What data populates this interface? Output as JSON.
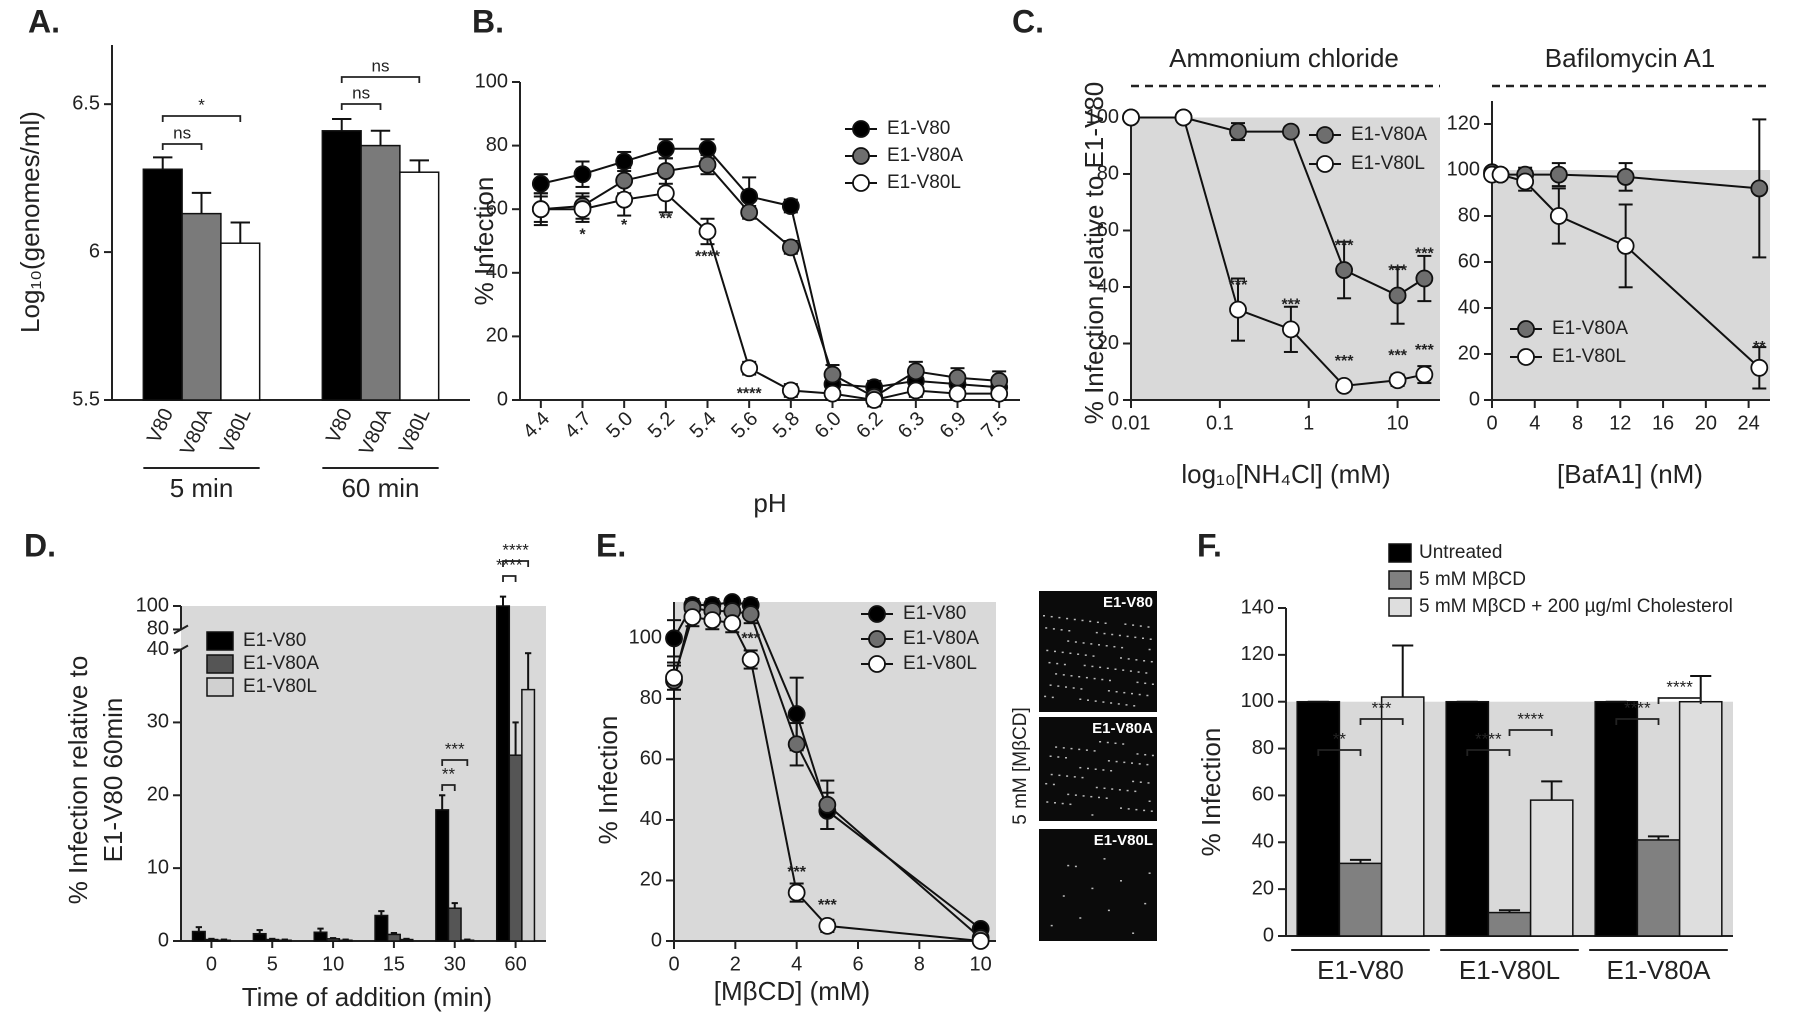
{
  "chart_data": [
    {
      "panel": "A.",
      "type": "bar",
      "ylabel": "Log₁₀(genomes/ml)",
      "categories": [
        "5 min",
        "60 min"
      ],
      "series": [
        {
          "name": "V80",
          "color": "#000000",
          "values": [
            6.28,
            6.41
          ],
          "errors": [
            0.04,
            0.04
          ]
        },
        {
          "name": "V80A",
          "color": "#7a7a7a",
          "values": [
            6.13,
            6.36
          ],
          "errors": [
            0.07,
            0.05
          ]
        },
        {
          "name": "V80L",
          "color": "#ffffff",
          "values": [
            6.03,
            6.27
          ],
          "errors": [
            0.07,
            0.04
          ]
        }
      ],
      "ylim": [
        5.5,
        6.7
      ],
      "yticks": [
        5.5,
        6,
        6.5
      ],
      "brackets": [
        "*",
        "ns",
        "ns",
        "ns"
      ]
    },
    {
      "panel": "B.",
      "type": "line",
      "xlabel": "pH",
      "ylabel": "% Infection",
      "categories": [
        "4.4",
        "4.7",
        "5.0",
        "5.2",
        "5.4",
        "5.6",
        "5.8",
        "6.0",
        "6.2",
        "6.3",
        "6.9",
        "7.5"
      ],
      "series": [
        {
          "name": "E1-V80",
          "color": "#000000",
          "values": [
            68,
            71,
            75,
            79,
            79,
            64,
            61,
            5,
            4,
            6,
            5,
            4
          ],
          "errors": [
            3,
            4,
            3,
            3,
            3,
            6,
            2,
            3,
            2,
            3,
            3,
            3
          ]
        },
        {
          "name": "E1-V80A",
          "color": "#6e6e6e",
          "values": [
            60,
            61,
            69,
            72,
            74,
            59,
            48,
            8,
            1,
            9,
            7,
            6
          ],
          "errors": [
            4,
            4,
            4,
            4,
            3,
            2,
            2,
            3,
            2,
            3,
            3,
            3
          ]
        },
        {
          "name": "E1-V80L",
          "color": "#ffffff",
          "values": [
            60,
            60,
            63,
            65,
            53,
            10,
            3,
            2,
            0,
            3,
            2,
            2
          ],
          "errors": [
            5,
            4,
            5,
            6,
            4,
            2,
            2,
            2,
            2,
            2,
            2,
            2
          ],
          "significance": [
            null,
            "*",
            "*",
            "**",
            "****",
            "****",
            null,
            null,
            null,
            null,
            null,
            null
          ]
        }
      ],
      "ylim": [
        0,
        100
      ],
      "yticks": [
        0,
        20,
        40,
        60,
        80,
        100
      ],
      "legend": "upper right"
    },
    {
      "panel": "C.",
      "type": "line",
      "title": "Ammonium chloride",
      "xlabel": "log₁₀[NH₄Cl] (mM)",
      "ylabel": "% Infection relative to E1-V80",
      "x": [
        0.01,
        0.039,
        0.16,
        0.63,
        2.5,
        10,
        20
      ],
      "xlog": true,
      "xlim": [
        0.01,
        30
      ],
      "xticks": [
        0.01,
        0.1,
        1,
        10
      ],
      "ylim": [
        0,
        103
      ],
      "yticks": [
        0,
        20,
        40,
        60,
        80,
        100
      ],
      "shade": "#d9d9d9",
      "shade_to": 100,
      "series": [
        {
          "name": "E1-V80A",
          "color": "#6e6e6e",
          "values": [
            100,
            100,
            95,
            95,
            46,
            37,
            43
          ],
          "errors": [
            0,
            0,
            3,
            0,
            10,
            10,
            8
          ],
          "significance": [
            null,
            null,
            null,
            null,
            "***",
            "***",
            "***"
          ]
        },
        {
          "name": "E1-V80L",
          "color": "#ffffff",
          "values": [
            100,
            100,
            32,
            25,
            5,
            7,
            9
          ],
          "errors": [
            0,
            0,
            11,
            8,
            1,
            2,
            3
          ],
          "significance": [
            null,
            null,
            "***",
            "***",
            "***",
            "***",
            "***"
          ]
        }
      ],
      "legend": "upper right"
    },
    {
      "type": "line",
      "title": "Bafilomycin A1",
      "xlabel": "[BafA1] (nM)",
      "x": [
        0,
        0.8,
        3.1,
        6.25,
        12.5,
        25
      ],
      "xlim": [
        0,
        26
      ],
      "xticks": [
        0,
        4,
        8,
        12,
        16,
        20,
        24
      ],
      "ylim": [
        0,
        130
      ],
      "yticks": [
        0,
        20,
        40,
        60,
        80,
        100,
        120
      ],
      "shade": "#d9d9d9",
      "shade_to": 100,
      "series": [
        {
          "name": "E1-V80A",
          "color": "#6e6e6e",
          "values": [
            99,
            98,
            98,
            98,
            97,
            92
          ],
          "errors": [
            2,
            2,
            3,
            5,
            6,
            30
          ]
        },
        {
          "name": "E1-V80L",
          "color": "#ffffff",
          "values": [
            98,
            98,
            95,
            80,
            67,
            14
          ],
          "errors": [
            2,
            2,
            4,
            12,
            18,
            9
          ],
          "significance": [
            null,
            null,
            null,
            null,
            null,
            "**"
          ]
        }
      ],
      "legend": "lower left"
    },
    {
      "panel": "D.",
      "type": "bar",
      "xlabel": "Time of addition (min)",
      "ylabel": [
        "% Infection relative to",
        "E1-V80 60min"
      ],
      "categories": [
        "0",
        "5",
        "10",
        "15",
        "30",
        "60"
      ],
      "ylim": [
        0,
        100
      ],
      "ybreak": [
        40,
        80
      ],
      "yticks": [
        0,
        10,
        20,
        30,
        40,
        80,
        100
      ],
      "shade": "#d9d9d9",
      "series": [
        {
          "name": "E1-V80",
          "color": "#000000",
          "values": [
            1.3,
            1.0,
            1.2,
            3.5,
            18,
            100
          ],
          "errors": [
            0.6,
            0.5,
            0.5,
            0.6,
            2,
            8
          ]
        },
        {
          "name": "E1-V80A",
          "color": "#555555",
          "values": [
            0.2,
            0.2,
            0.3,
            0.9,
            4.5,
            25.5
          ],
          "errors": [
            0.1,
            0.1,
            0.1,
            0.2,
            0.7,
            4.5
          ]
        },
        {
          "name": "E1-V80L",
          "color": "#d0d0d0",
          "values": [
            0.1,
            0.1,
            0.1,
            0.2,
            0.1,
            34.5
          ],
          "errors": [
            0.1,
            0.1,
            0.1,
            0.1,
            0.1,
            5
          ]
        }
      ],
      "legend": "upper left",
      "brackets": [
        "**",
        "***",
        "****",
        "****"
      ]
    },
    {
      "panel": "E.",
      "type": "line",
      "xlabel": "[MβCD] (mM)",
      "ylabel": "% Infection",
      "x": [
        0,
        0.6,
        1.25,
        1.9,
        2.5,
        4,
        5,
        10
      ],
      "xlim": [
        0,
        10.5
      ],
      "xticks": [
        0,
        2,
        4,
        6,
        8,
        10
      ],
      "ylim": [
        0,
        112
      ],
      "yticks": [
        0,
        20,
        40,
        60,
        80,
        100
      ],
      "shade": "#d9d9d9",
      "series": [
        {
          "name": "E1-V80",
          "color": "#000000",
          "values": [
            100,
            111,
            111,
            112,
            111,
            75,
            43,
            4
          ],
          "errors": [
            6,
            2,
            2,
            1,
            2,
            12,
            6,
            1
          ]
        },
        {
          "name": "E1-V80A",
          "color": "#6e6e6e",
          "values": [
            86,
            110,
            109,
            109,
            108,
            65,
            45,
            1
          ],
          "errors": [
            6,
            3,
            3,
            3,
            3,
            7,
            8,
            1
          ]
        },
        {
          "name": "E1-V80L",
          "color": "#ffffff",
          "values": [
            87,
            107,
            106,
            105,
            93,
            16,
            5,
            0
          ],
          "errors": [
            4,
            3,
            3,
            3,
            3,
            3,
            2,
            1
          ],
          "significance": [
            null,
            null,
            null,
            null,
            "***",
            "***",
            "***",
            null
          ]
        }
      ],
      "legend": "upper right",
      "images": {
        "caption": "5 mM [MβCD]",
        "labels": [
          "E1-V80",
          "E1-V80A",
          "E1-V80L"
        ]
      }
    },
    {
      "panel": "F.",
      "type": "bar",
      "ylabel": "% Infection",
      "categories": [
        "E1-V80",
        "E1-V80L",
        "E1-V80A"
      ],
      "ylim": [
        0,
        140
      ],
      "yticks": [
        0,
        20,
        40,
        60,
        80,
        100,
        120,
        140
      ],
      "shade": "#d9d9d9",
      "shade_to": 100,
      "series": [
        {
          "name": "Untreated",
          "color": "#000000",
          "values": [
            100,
            100,
            100
          ],
          "errors": [
            0,
            0,
            0
          ]
        },
        {
          "name": "5 mM MβCD",
          "color": "#808080",
          "values": [
            31,
            10,
            41
          ],
          "errors": [
            1.5,
            1,
            1.5
          ]
        },
        {
          "name": "5 mM MβCD + 200 µg/ml Cholesterol",
          "color": "#dedede",
          "values": [
            102,
            58,
            100
          ],
          "errors": [
            22,
            8,
            11
          ]
        }
      ],
      "legend": "top",
      "brackets": [
        "**",
        "***",
        "****",
        "****",
        "****",
        "****"
      ]
    }
  ]
}
